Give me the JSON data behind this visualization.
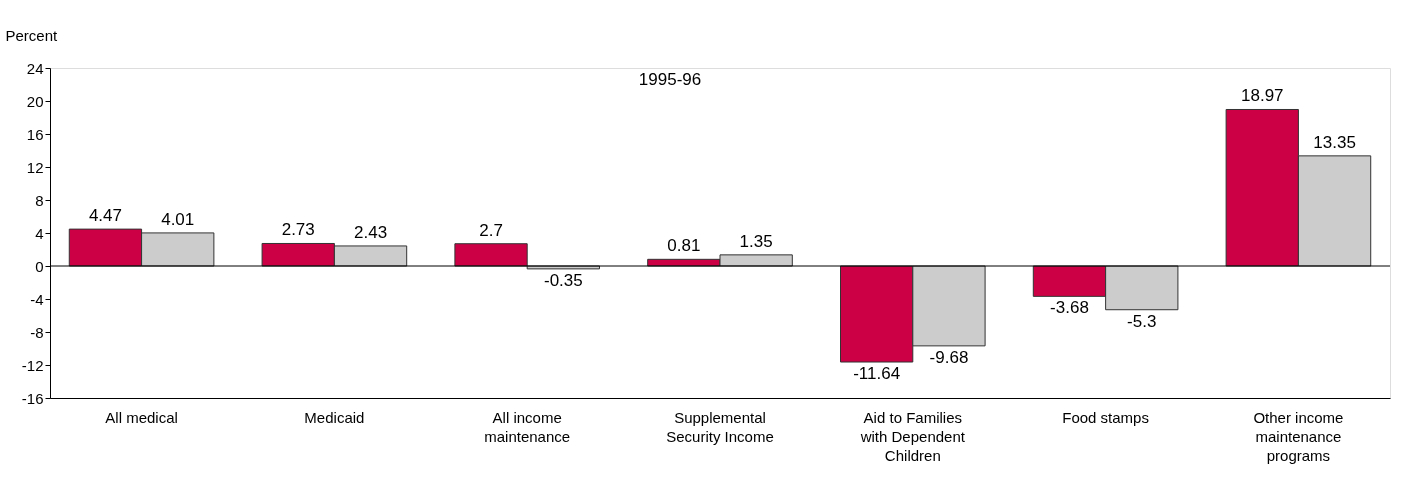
{
  "chart_data": {
    "type": "bar",
    "ylabel": "Percent",
    "annotations": [
      "1995-96"
    ],
    "categories": [
      "All medical",
      "Medicaid",
      "All income maintenance",
      "Supplemental Security Income",
      "Aid to Families with Dependent Children",
      "Food stamps",
      "Other income maintenance programs"
    ],
    "series": [
      {
        "color": "#cc0044",
        "values": [
          4.47,
          2.73,
          2.7,
          0.81,
          -11.64,
          -3.68,
          18.97
        ]
      },
      {
        "color": "#cccccc",
        "values": [
          4.01,
          2.43,
          -0.35,
          1.35,
          -9.68,
          -5.3,
          13.35
        ]
      }
    ],
    "ylim": [
      -16,
      24
    ],
    "yticks": [
      -16,
      -12,
      -8,
      -4,
      0,
      4,
      8,
      12,
      16,
      20,
      24
    ],
    "ref_lines": [
      {
        "axis": "y",
        "value": 0
      }
    ],
    "data_labels": true,
    "grid": false,
    "legend": false
  }
}
